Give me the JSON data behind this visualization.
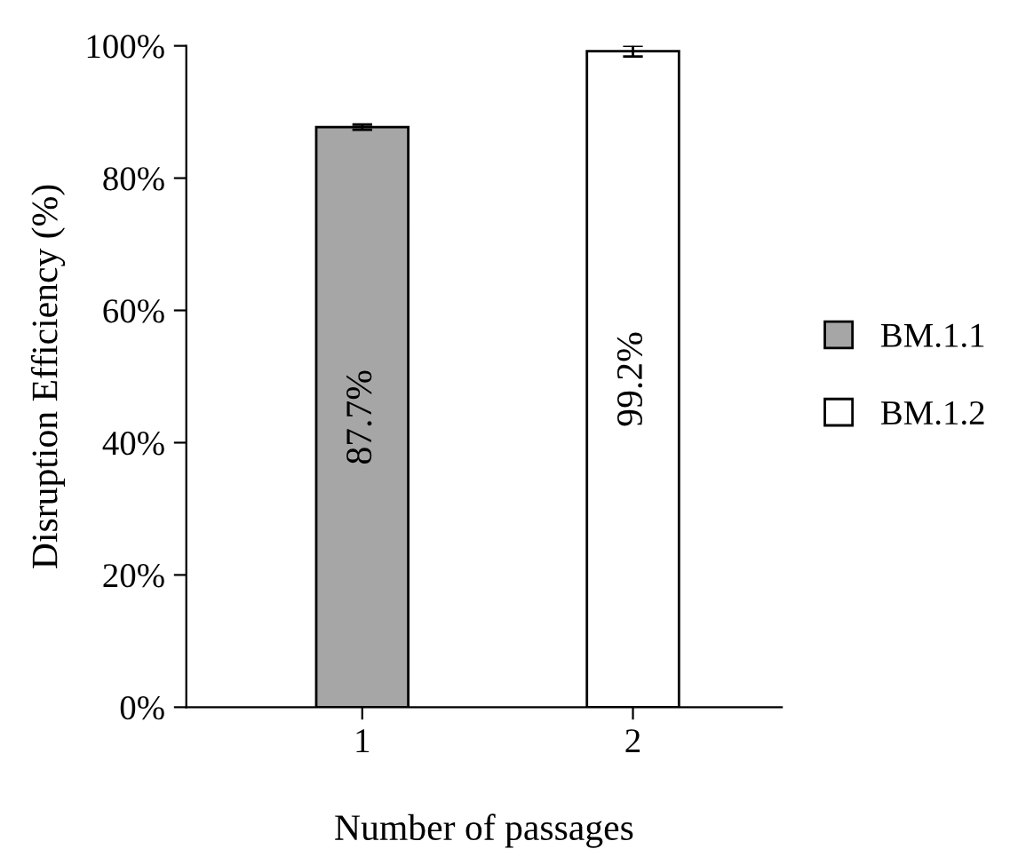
{
  "chart_data": {
    "type": "bar",
    "xlabel": "Number of passages",
    "ylabel": "Disruption Efficiency (%)",
    "categories": [
      "1",
      "2"
    ],
    "series": [
      {
        "name": "BM.1.1",
        "color": "#a6a6a6",
        "values": [
          87.7,
          null
        ],
        "errors": [
          0.4,
          null
        ],
        "value_labels": [
          "87.7%",
          null
        ]
      },
      {
        "name": "BM.1.2",
        "color": "#ffffff",
        "values": [
          null,
          99.2
        ],
        "errors": [
          null,
          0.8
        ],
        "value_labels": [
          null,
          "99.2%"
        ]
      }
    ],
    "ylim": [
      0,
      100
    ],
    "yticks": [
      {
        "value": 0,
        "label": "0%"
      },
      {
        "value": 20,
        "label": "20%"
      },
      {
        "value": 40,
        "label": "40%"
      },
      {
        "value": 60,
        "label": "60%"
      },
      {
        "value": 80,
        "label": "80%"
      },
      {
        "value": 100,
        "label": "100%"
      }
    ],
    "grid": false,
    "legend": "right"
  }
}
